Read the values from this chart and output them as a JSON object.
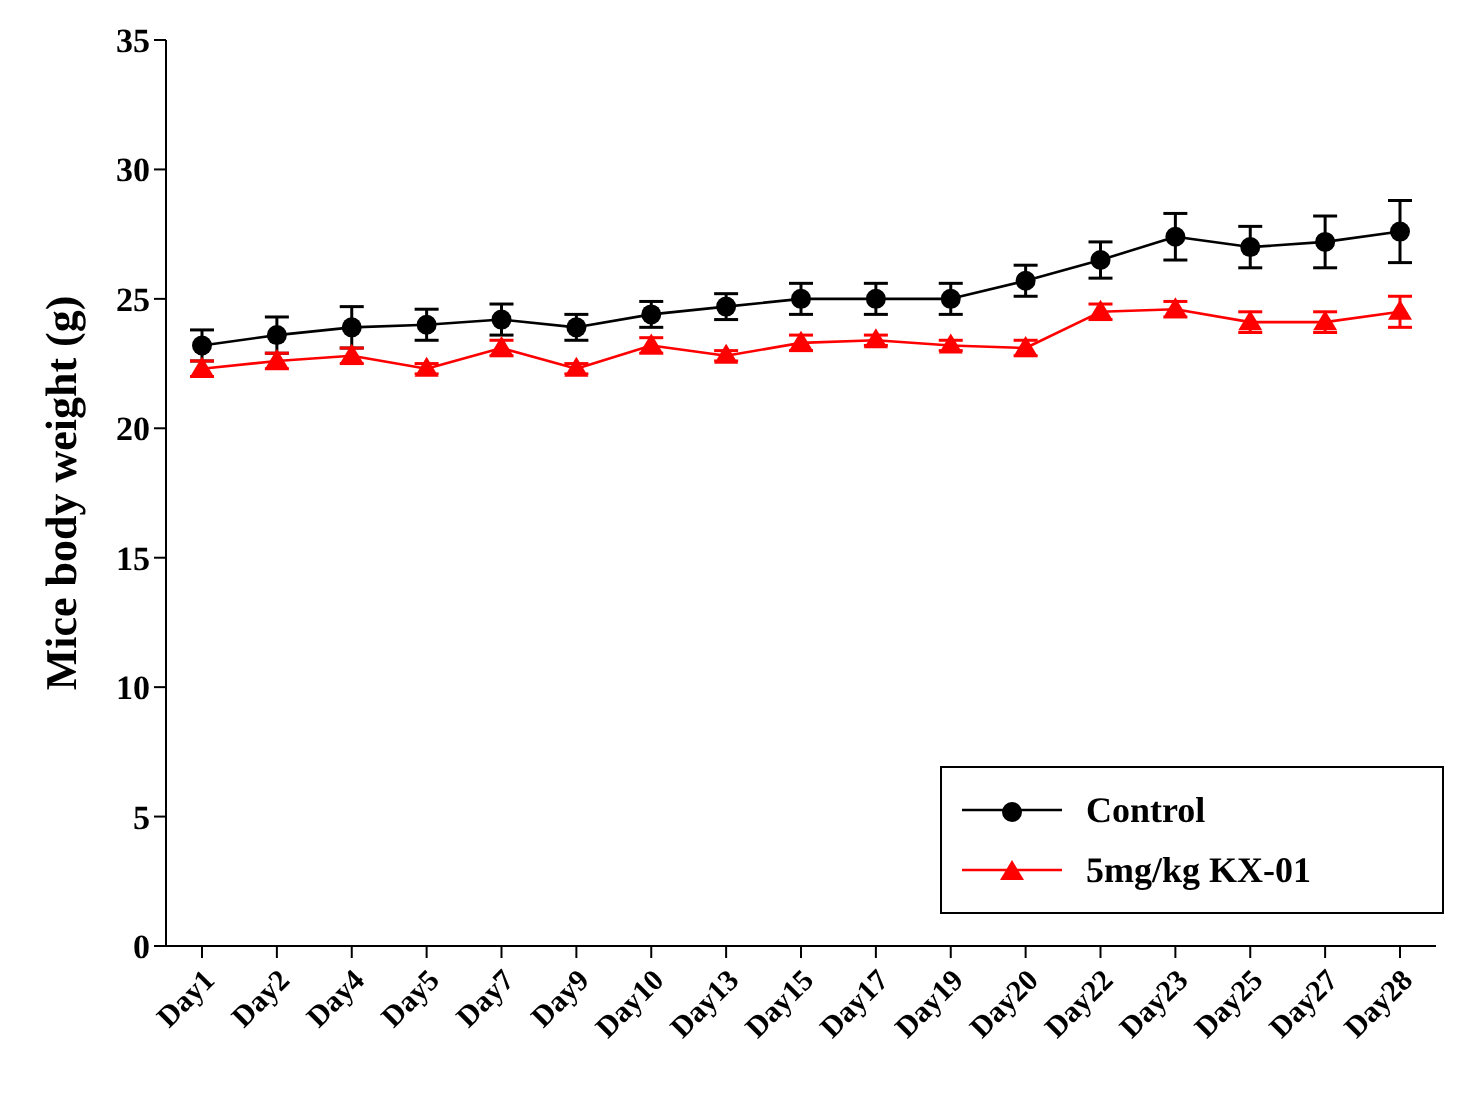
{
  "chart_data": {
    "type": "line",
    "ylabel": "Mice body weight (g)",
    "categories": [
      "Day1",
      "Day2",
      "Day4",
      "Day5",
      "Day7",
      "Day9",
      "Day10",
      "Day13",
      "Day15",
      "Day17",
      "Day19",
      "Day20",
      "Day22",
      "Day23",
      "Day25",
      "Day27",
      "Day28"
    ],
    "series": [
      {
        "name": "Control",
        "color": "#000000",
        "marker": "circle",
        "values": [
          23.2,
          23.6,
          23.9,
          24.0,
          24.2,
          23.9,
          24.4,
          24.7,
          25.0,
          25.0,
          25.0,
          25.7,
          26.5,
          27.4,
          27.0,
          27.2,
          27.6
        ],
        "errors": [
          0.6,
          0.7,
          0.8,
          0.6,
          0.6,
          0.5,
          0.5,
          0.5,
          0.6,
          0.6,
          0.6,
          0.6,
          0.7,
          0.9,
          0.8,
          1.0,
          1.2
        ]
      },
      {
        "name": "5mg/kg KX-01",
        "color": "#ff0000",
        "marker": "triangle",
        "values": [
          22.3,
          22.6,
          22.8,
          22.3,
          23.1,
          22.3,
          23.2,
          22.8,
          23.3,
          23.4,
          23.2,
          23.1,
          24.5,
          24.6,
          24.1,
          24.1,
          24.5
        ],
        "errors": [
          0.3,
          0.3,
          0.3,
          0.2,
          0.3,
          0.2,
          0.3,
          0.2,
          0.3,
          0.2,
          0.2,
          0.3,
          0.3,
          0.3,
          0.4,
          0.4,
          0.6
        ]
      }
    ],
    "ylim": [
      0,
      35
    ],
    "yticks": [
      0,
      5,
      10,
      15,
      20,
      25,
      30,
      35
    ],
    "grid": false,
    "legend": "bottom right",
    "line_style": "solid"
  }
}
